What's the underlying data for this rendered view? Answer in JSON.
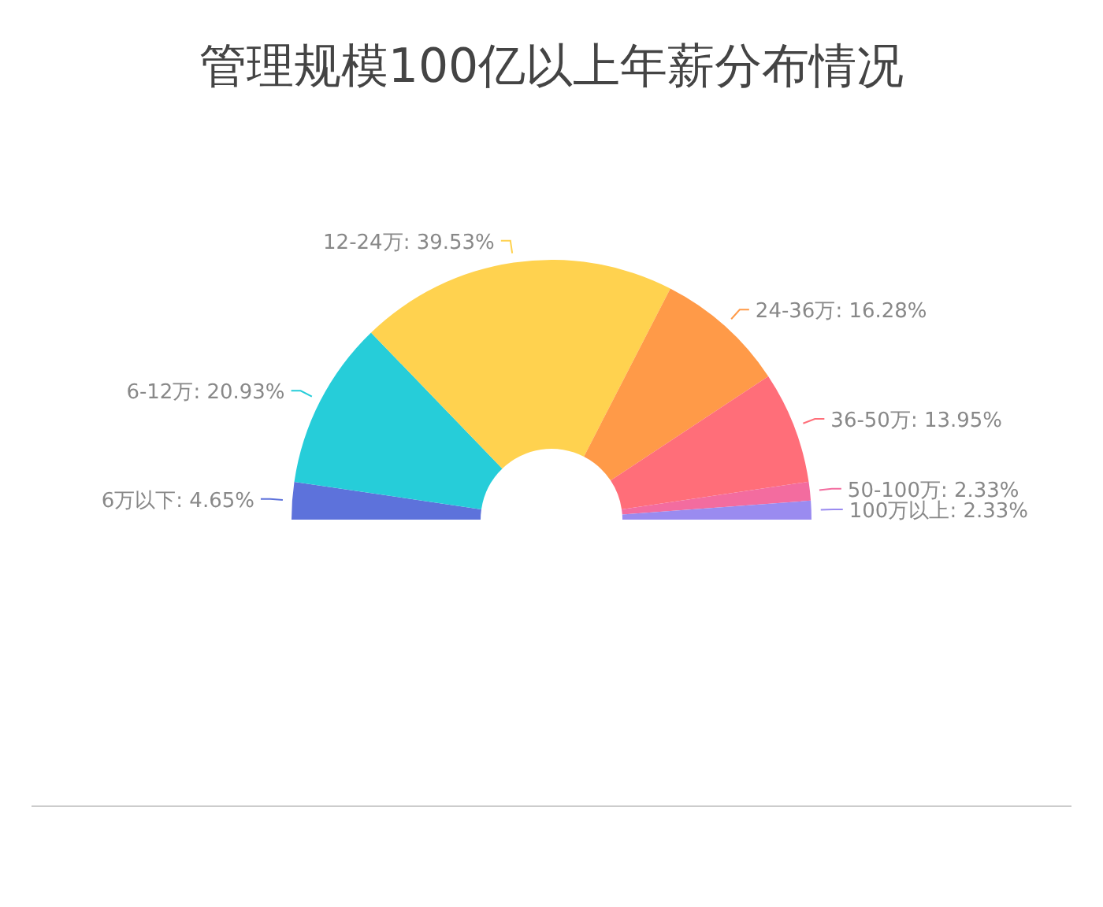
{
  "chart_data": {
    "type": "donut",
    "title": "管理规模100亿以上年薪分布情况",
    "categories": [
      "6万以下",
      "6-12万",
      "12-24万",
      "24-36万",
      "36-50万",
      "50-100万",
      "100万以上"
    ],
    "values": [
      4.65,
      20.93,
      39.53,
      16.28,
      13.95,
      2.33,
      2.33
    ],
    "colors": [
      "#5d72db",
      "#26cdd9",
      "#ffd24f",
      "#ff9a48",
      "#ff6e79",
      "#f36c9f",
      "#9a8bf0"
    ],
    "value_labels": [
      ": 4.65%",
      ": 20.93%",
      ": 39.53%",
      ": 16.28%",
      ": 13.95%",
      ": 2.33%",
      ": 2.33%"
    ]
  }
}
